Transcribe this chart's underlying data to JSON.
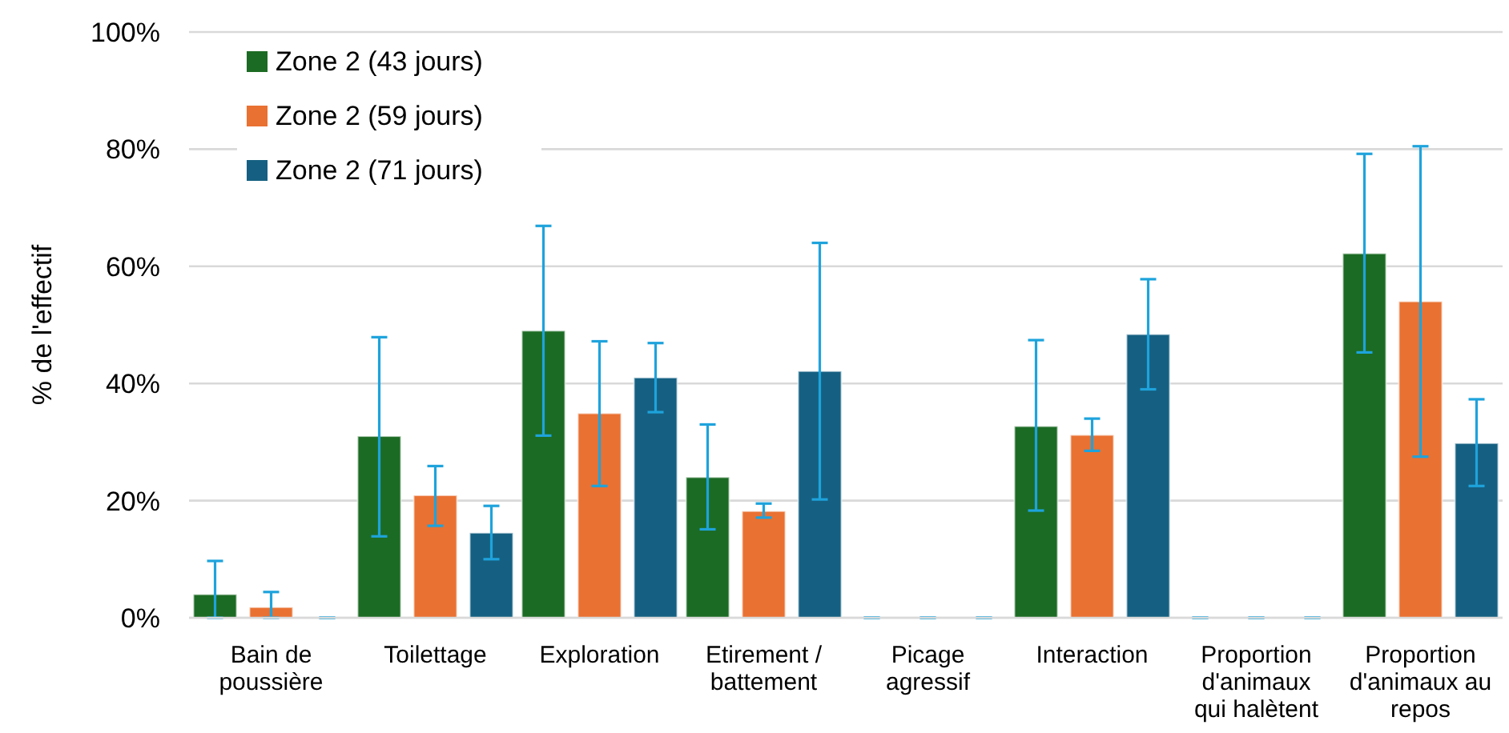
{
  "chart_data": {
    "type": "bar",
    "ylabel": "% de l'effectif",
    "categories": [
      "Bain de poussière",
      "Toilettage",
      "Exploration",
      "Etirement / battement",
      "Picage agressif",
      "Interaction",
      "Proportion d'animaux qui halètent",
      "Proportion d'animaux au repos"
    ],
    "series": [
      {
        "name": "Zone 2 (43 jours)",
        "color": "#1c6b24",
        "values": [
          4,
          31,
          49,
          24,
          0,
          32.7,
          0,
          62.2
        ],
        "errors": [
          [
            0,
            9.7
          ],
          [
            13.9,
            47.9
          ],
          [
            31.1,
            66.9
          ],
          [
            15.1,
            33
          ],
          0,
          [
            18.3,
            47.4
          ],
          0,
          [
            45.3,
            79.2
          ]
        ]
      },
      {
        "name": "Zone 2 (59 jours)",
        "color": "#e97132",
        "values": [
          1.8,
          20.9,
          34.9,
          18.2,
          0,
          31.2,
          0,
          54
        ],
        "errors": [
          [
            0,
            4.4
          ],
          [
            15.7,
            25.9
          ],
          [
            22.5,
            47.2
          ],
          [
            17.1,
            19.5
          ],
          0,
          [
            28.5,
            34
          ],
          0,
          [
            27.5,
            80.5
          ]
        ]
      },
      {
        "name": "Zone 2 (71 jours)",
        "color": "#156082",
        "values": [
          0,
          14.5,
          41,
          42.1,
          0,
          48.4,
          0,
          29.8
        ],
        "errors": [
          0,
          [
            10,
            19.1
          ],
          [
            35.1,
            46.9
          ],
          [
            20.2,
            64
          ],
          0,
          [
            39,
            57.8
          ],
          0,
          [
            22.5,
            37.3
          ]
        ]
      }
    ],
    "ylim": [
      0,
      100
    ],
    "yticks": [
      {
        "value": 0,
        "label": "0%"
      },
      {
        "value": 20,
        "label": "20%"
      },
      {
        "value": 40,
        "label": "40%"
      },
      {
        "value": 60,
        "label": "60%"
      },
      {
        "value": 80,
        "label": "80%"
      },
      {
        "value": 100,
        "label": "100%"
      }
    ],
    "grid": "y",
    "legend": "top left"
  }
}
